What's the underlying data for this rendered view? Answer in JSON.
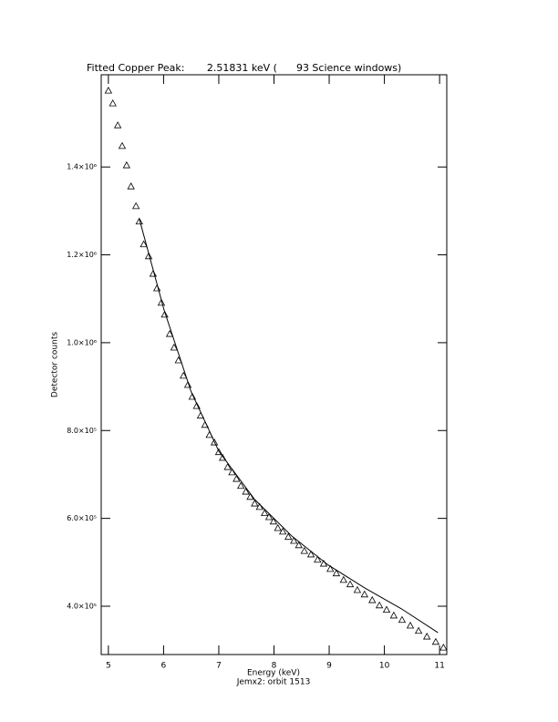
{
  "chart_data": {
    "type": "scatter",
    "title": "Fitted Copper Peak:       2.51831 keV (      93 Science windows)",
    "x_label": "Energy (keV)",
    "subtitle": "Jemx2: orbit 1513",
    "y_label": "Detector counts",
    "xlim": [
      4.87,
      11.13
    ],
    "xticks": [
      5,
      6,
      7,
      8,
      9,
      10,
      11
    ],
    "ylim": [
      290000,
      1610000
    ],
    "yticks": [
      {
        "value": 400000,
        "label": "4.0×10⁵"
      },
      {
        "value": 600000,
        "label": "6.0×10⁵"
      },
      {
        "value": 800000,
        "label": "8.0×10⁵"
      },
      {
        "value": 1000000,
        "label": "1.0×10⁶"
      },
      {
        "value": 1200000,
        "label": "1.2×10⁶"
      },
      {
        "value": 1400000,
        "label": "1.4×10⁶"
      }
    ],
    "series": [
      {
        "mode": "markers",
        "marker": "triangle",
        "color": "#000000",
        "x": [
          5.0,
          5.08,
          5.17,
          5.25,
          5.33,
          5.41,
          5.5,
          5.56,
          5.64,
          5.73,
          5.81,
          5.88,
          5.96,
          6.02,
          6.11,
          6.19,
          6.27,
          6.36,
          6.44,
          6.52,
          6.6,
          6.67,
          6.75,
          6.83,
          6.92,
          7.0,
          7.07,
          7.16,
          7.24,
          7.32,
          7.4,
          7.49,
          7.57,
          7.65,
          7.74,
          7.83,
          7.91,
          7.99,
          8.07,
          8.16,
          8.26,
          8.36,
          8.45,
          8.55,
          8.67,
          8.79,
          8.9,
          9.02,
          9.13,
          9.26,
          9.38,
          9.51,
          9.64,
          9.78,
          9.91,
          10.04,
          10.17,
          10.32,
          10.47,
          10.62,
          10.77,
          10.93,
          11.07
        ],
        "values": [
          1574000,
          1545000,
          1495000,
          1448000,
          1404000,
          1356000,
          1311000,
          1276000,
          1224000,
          1197000,
          1157000,
          1124000,
          1091000,
          1064000,
          1020000,
          989000,
          960000,
          925000,
          904000,
          877000,
          856000,
          834000,
          813000,
          790000,
          773000,
          751000,
          738000,
          717000,
          705000,
          690000,
          674000,
          661000,
          649000,
          634000,
          626000,
          612000,
          603000,
          593000,
          578000,
          570000,
          558000,
          549000,
          539000,
          526000,
          518000,
          506000,
          497000,
          485000,
          475000,
          460000,
          450000,
          437000,
          427000,
          414000,
          402000,
          392000,
          379000,
          369000,
          356000,
          344000,
          331000,
          319000,
          306000
        ]
      },
      {
        "mode": "lines",
        "color": "#000000",
        "x": [
          5.56,
          6.01,
          6.5,
          7.0,
          7.65,
          8.32,
          8.98,
          9.64,
          10.31,
          10.97
        ],
        "values": [
          1282000,
          1074000,
          888000,
          753000,
          643000,
          560000,
          494000,
          442000,
          394000,
          340000
        ]
      }
    ]
  }
}
